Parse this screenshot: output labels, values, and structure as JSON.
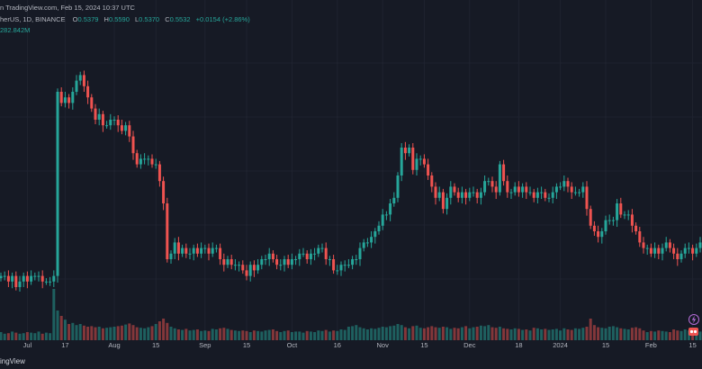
{
  "header": {
    "line1": "n TradingView.com, Feb 15, 2024 10:37 UTC",
    "line2_prefix": "herUS, 1D, BINANCE",
    "ohlc": [
      {
        "label": "O",
        "value": "0.5379"
      },
      {
        "label": "H",
        "value": "0.5590"
      },
      {
        "label": "L",
        "value": "0.5370"
      },
      {
        "label": "C",
        "value": "0.5532"
      }
    ],
    "change": "+0.0154 (+2.86%)",
    "volume": "282.842M"
  },
  "footer": {
    "brand": "ingView"
  },
  "colors": {
    "background": "#161a25",
    "up": "#26a69a",
    "down": "#ef5350",
    "grid": "#1f2330",
    "text": "#b2b5be"
  },
  "chart_data": {
    "type": "candlestick",
    "x_tick_labels": [
      "Jul",
      "17",
      "Aug",
      "15",
      "Sep",
      "15",
      "Oct",
      "16",
      "Nov",
      "15",
      "Dec",
      "18",
      "2024",
      "15",
      "Feb",
      "15"
    ],
    "series": [
      {
        "name": "",
        "close": [
          0.47,
          0.47,
          0.46,
          0.47,
          0.45,
          0.46,
          0.47,
          0.46,
          0.47,
          0.47,
          0.47,
          0.46,
          0.46,
          0.46,
          0.47,
          0.8,
          0.78,
          0.79,
          0.78,
          0.8,
          0.82,
          0.83,
          0.81,
          0.79,
          0.77,
          0.75,
          0.76,
          0.74,
          0.74,
          0.75,
          0.75,
          0.74,
          0.73,
          0.74,
          0.72,
          0.69,
          0.67,
          0.68,
          0.68,
          0.68,
          0.67,
          0.67,
          0.64,
          0.6,
          0.5,
          0.51,
          0.53,
          0.51,
          0.52,
          0.51,
          0.51,
          0.52,
          0.51,
          0.52,
          0.52,
          0.51,
          0.52,
          0.52,
          0.5,
          0.49,
          0.5,
          0.49,
          0.49,
          0.49,
          0.48,
          0.47,
          0.49,
          0.48,
          0.49,
          0.5,
          0.5,
          0.51,
          0.5,
          0.49,
          0.49,
          0.5,
          0.49,
          0.5,
          0.5,
          0.51,
          0.51,
          0.5,
          0.51,
          0.51,
          0.52,
          0.52,
          0.5,
          0.5,
          0.48,
          0.48,
          0.49,
          0.49,
          0.49,
          0.5,
          0.5,
          0.52,
          0.53,
          0.53,
          0.54,
          0.55,
          0.56,
          0.58,
          0.58,
          0.6,
          0.61,
          0.65,
          0.7,
          0.69,
          0.7,
          0.66,
          0.68,
          0.68,
          0.67,
          0.65,
          0.63,
          0.61,
          0.62,
          0.59,
          0.61,
          0.63,
          0.62,
          0.61,
          0.62,
          0.61,
          0.62,
          0.62,
          0.61,
          0.62,
          0.64,
          0.64,
          0.63,
          0.62,
          0.67,
          0.64,
          0.62,
          0.62,
          0.63,
          0.62,
          0.63,
          0.62,
          0.62,
          0.61,
          0.62,
          0.62,
          0.61,
          0.61,
          0.62,
          0.63,
          0.63,
          0.64,
          0.63,
          0.62,
          0.62,
          0.62,
          0.63,
          0.59,
          0.56,
          0.55,
          0.54,
          0.55,
          0.57,
          0.57,
          0.57,
          0.6,
          0.58,
          0.58,
          0.58,
          0.56,
          0.55,
          0.53,
          0.52,
          0.52,
          0.51,
          0.52,
          0.51,
          0.52,
          0.53,
          0.52,
          0.51,
          0.5,
          0.51,
          0.52,
          0.52,
          0.51,
          0.52,
          0.53,
          0.55
        ]
      },
      {
        "name": "Volume",
        "values": [
          0.15,
          0.12,
          0.13,
          0.16,
          0.14,
          0.12,
          0.13,
          0.15,
          0.14,
          0.13,
          0.16,
          0.12,
          0.14,
          0.13,
          0.95,
          0.55,
          0.45,
          0.38,
          0.3,
          0.32,
          0.28,
          0.3,
          0.27,
          0.25,
          0.26,
          0.24,
          0.25,
          0.22,
          0.23,
          0.24,
          0.25,
          0.26,
          0.27,
          0.29,
          0.31,
          0.28,
          0.24,
          0.23,
          0.22,
          0.24,
          0.26,
          0.3,
          0.35,
          0.4,
          0.32,
          0.25,
          0.22,
          0.2,
          0.19,
          0.21,
          0.18,
          0.19,
          0.2,
          0.17,
          0.18,
          0.17,
          0.21,
          0.2,
          0.22,
          0.23,
          0.21,
          0.19,
          0.18,
          0.17,
          0.18,
          0.17,
          0.15,
          0.18,
          0.17,
          0.16,
          0.18,
          0.19,
          0.2,
          0.17,
          0.15,
          0.17,
          0.18,
          0.15,
          0.16,
          0.16,
          0.14,
          0.17,
          0.16,
          0.15,
          0.18,
          0.17,
          0.19,
          0.16,
          0.18,
          0.17,
          0.2,
          0.19,
          0.25,
          0.26,
          0.28,
          0.24,
          0.22,
          0.2,
          0.22,
          0.21,
          0.23,
          0.25,
          0.24,
          0.26,
          0.27,
          0.3,
          0.28,
          0.24,
          0.22,
          0.26,
          0.27,
          0.23,
          0.22,
          0.24,
          0.26,
          0.24,
          0.23,
          0.25,
          0.24,
          0.21,
          0.23,
          0.22,
          0.24,
          0.26,
          0.22,
          0.24,
          0.25,
          0.27,
          0.26,
          0.28,
          0.24,
          0.23,
          0.25,
          0.22,
          0.21,
          0.2,
          0.22,
          0.21,
          0.19,
          0.2,
          0.18,
          0.23,
          0.22,
          0.2,
          0.21,
          0.19,
          0.2,
          0.21,
          0.18,
          0.22,
          0.2,
          0.19,
          0.22,
          0.21,
          0.23,
          0.25,
          0.4,
          0.28,
          0.24,
          0.23,
          0.22,
          0.25,
          0.26,
          0.24,
          0.22,
          0.21,
          0.2,
          0.23,
          0.24,
          0.22,
          0.18,
          0.15,
          0.17,
          0.16,
          0.18,
          0.17,
          0.16,
          0.15,
          0.2,
          0.18,
          0.17,
          0.2,
          0.18,
          0.17,
          0.15,
          0.16,
          0.15,
          0.18
        ]
      }
    ],
    "grid": true
  }
}
